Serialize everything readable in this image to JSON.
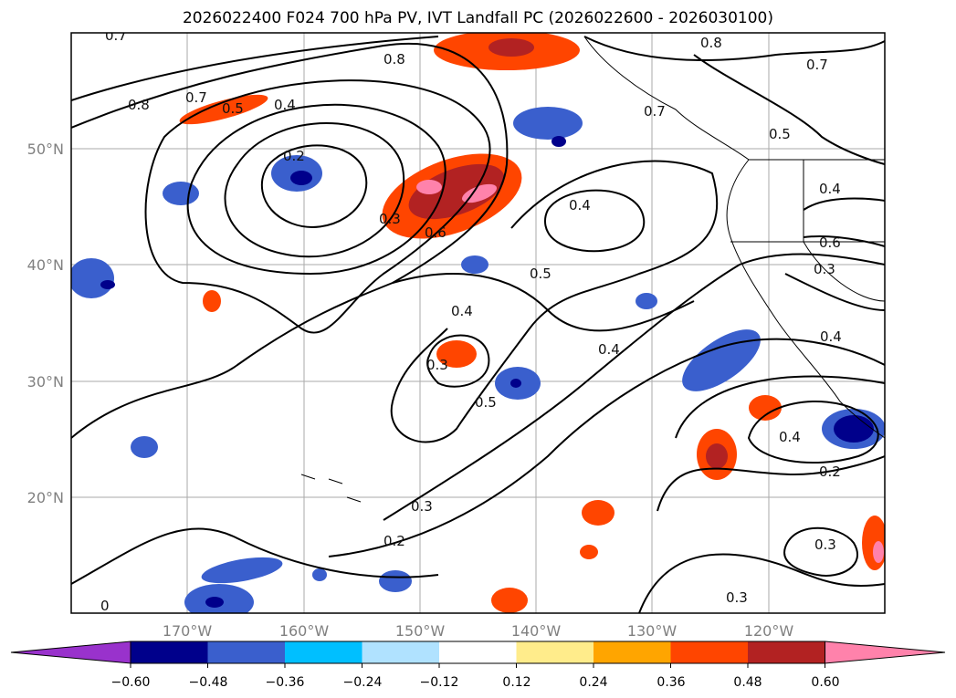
{
  "title": "2026022400 F024 700 hPa PV, IVT Landfall PC (2026022600 - 2026030100)",
  "lon_labels": [
    "170°W",
    "160°W",
    "150°W",
    "140°W",
    "130°W",
    "120°W"
  ],
  "lat_labels": [
    "50°N",
    "40°N",
    "30°N",
    "20°N"
  ],
  "contour_labels": [
    "0.7",
    "0.8",
    "0.7",
    "0.5",
    "0.4",
    "0.2",
    "0.3",
    "0.6",
    "0.8",
    "0.4",
    "0.5",
    "0.4",
    "0.3",
    "0.5",
    "0.4",
    "0.3",
    "0.2",
    "0.8",
    "0.7",
    "0.5",
    "0.4",
    "0.6",
    "0.3",
    "0.4",
    "0.4",
    "0.2",
    "0.3",
    "0.3",
    "0",
    "0.7"
  ],
  "colorbar": {
    "ticks": [
      "−0.60",
      "−0.48",
      "−0.36",
      "−0.24",
      "−0.12",
      "0.12",
      "0.24",
      "0.36",
      "0.48",
      "0.60"
    ],
    "colors": [
      "#9932cc",
      "#00008b",
      "#3a5fcd",
      "#00bfff",
      "#b0e2ff",
      "#ffffff",
      "#ffec8b",
      "#ffa500",
      "#ff4500",
      "#b22222",
      "#ff82ab"
    ]
  }
}
